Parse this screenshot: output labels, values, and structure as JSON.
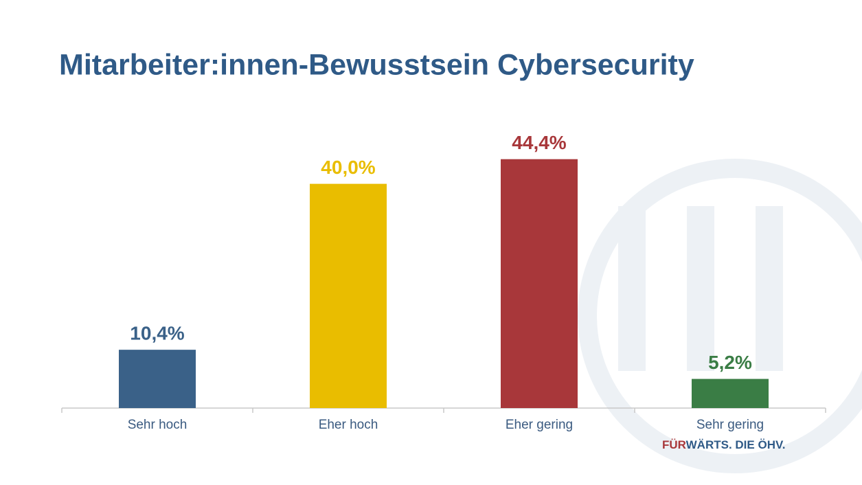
{
  "chart_data": {
    "type": "bar",
    "title": "Mitarbeiter:innen-Bewusstsein Cybersecurity",
    "categories": [
      "Sehr hoch",
      "Eher hoch",
      "Eher gering",
      "Sehr gering"
    ],
    "values": [
      10.4,
      40.0,
      44.4,
      5.2
    ],
    "value_labels": [
      "10,4%",
      "40,0%",
      "44,4%",
      "5,2%"
    ],
    "colors": [
      "#3a6188",
      "#e9bd00",
      "#a8373a",
      "#3a7d45"
    ],
    "ylim": [
      0,
      50
    ]
  },
  "logo_text": [
    "FÜR",
    "WÄRTS. DIE ÖHV."
  ]
}
